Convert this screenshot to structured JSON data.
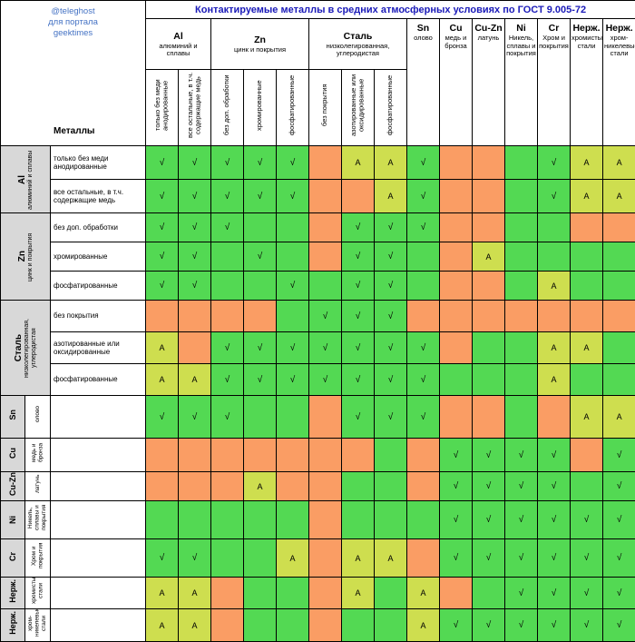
{
  "credit": {
    "line1": "@teleghost",
    "line2": "для портала",
    "line3": "geektimes"
  },
  "metals_label": "Металлы",
  "colors": {
    "allowed_green": "#53d953",
    "conditional_yellow": "#cede4f",
    "forbidden_orange": "#fa9d64",
    "group_gray": "#d8d8d8",
    "title_blue": "#1a1ab8",
    "credit_blue": "#4472c4"
  },
  "chart_data": {
    "type": "table",
    "title": "Контактируемые металлы в средних атмосферных условиях по ГОСТ 9.005-72",
    "legend_marks": {
      "v": "√",
      "a": "A"
    },
    "cell_states": {
      "v": "allowed-checked",
      "g": "allowed-unmarked",
      "a": "conditional-A",
      "o": "not-allowed"
    },
    "groups": [
      {
        "code": "Al",
        "name": "алюминий и сплавы",
        "subs": [
          "только без меди анодированные",
          "все остальные, в т.ч. содержащие медь"
        ]
      },
      {
        "code": "Zn",
        "name": "цинк и покрытия",
        "subs": [
          "без доп. обработки",
          "хромированные",
          "фосфатированные"
        ]
      },
      {
        "code": "Сталь",
        "name": "низколегированная, углеродистая",
        "subs": [
          "без покрытия",
          "азотированные или оксидированные",
          "фосфатированные"
        ]
      },
      {
        "code": "Sn",
        "name": "олово",
        "subs": []
      },
      {
        "code": "Cu",
        "name": "медь и бронза",
        "subs": []
      },
      {
        "code": "Cu-Zn",
        "name": "латунь",
        "subs": []
      },
      {
        "code": "Ni",
        "name": "Никель, сплавы и покрытия",
        "subs": []
      },
      {
        "code": "Cr",
        "name": "Хром и покрытия",
        "subs": []
      },
      {
        "code": "Нерж.",
        "name": "хромистые стали",
        "subs": []
      },
      {
        "code": "Нерж.",
        "name": "хром-никелевые стали",
        "subs": []
      }
    ],
    "matrix": [
      [
        "v",
        "v",
        "v",
        "v",
        "v",
        "o",
        "a",
        "a",
        "v",
        "o",
        "o",
        "g",
        "v",
        "a",
        "a"
      ],
      [
        "v",
        "v",
        "v",
        "v",
        "v",
        "o",
        "o",
        "a",
        "v",
        "o",
        "o",
        "g",
        "v",
        "a",
        "a"
      ],
      [
        "v",
        "v",
        "v",
        "g",
        "g",
        "o",
        "v",
        "v",
        "v",
        "o",
        "o",
        "g",
        "g",
        "o",
        "o"
      ],
      [
        "v",
        "v",
        "g",
        "v",
        "g",
        "o",
        "v",
        "v",
        "g",
        "o",
        "a",
        "g",
        "g",
        "g",
        "g"
      ],
      [
        "v",
        "v",
        "g",
        "g",
        "v",
        "g",
        "v",
        "v",
        "g",
        "o",
        "o",
        "g",
        "a",
        "g",
        "g"
      ],
      [
        "o",
        "o",
        "o",
        "o",
        "g",
        "v",
        "v",
        "v",
        "o",
        "o",
        "o",
        "o",
        "o",
        "o",
        "o"
      ],
      [
        "a",
        "o",
        "v",
        "v",
        "v",
        "v",
        "v",
        "v",
        "v",
        "o",
        "g",
        "g",
        "a",
        "a",
        "g"
      ],
      [
        "a",
        "a",
        "v",
        "v",
        "v",
        "v",
        "v",
        "v",
        "v",
        "g",
        "g",
        "g",
        "a",
        "g",
        "g"
      ],
      [
        "v",
        "v",
        "v",
        "g",
        "g",
        "o",
        "v",
        "v",
        "v",
        "o",
        "o",
        "g",
        "o",
        "a",
        "a"
      ],
      [
        "o",
        "o",
        "o",
        "o",
        "o",
        "o",
        "o",
        "g",
        "o",
        "v",
        "v",
        "v",
        "v",
        "o",
        "v"
      ],
      [
        "o",
        "o",
        "o",
        "a",
        "o",
        "o",
        "g",
        "g",
        "o",
        "v",
        "v",
        "v",
        "v",
        "g",
        "v"
      ],
      [
        "g",
        "g",
        "g",
        "g",
        "g",
        "o",
        "g",
        "g",
        "g",
        "v",
        "v",
        "v",
        "v",
        "v",
        "v"
      ],
      [
        "v",
        "v",
        "g",
        "g",
        "a",
        "o",
        "a",
        "a",
        "o",
        "v",
        "v",
        "v",
        "v",
        "v",
        "v"
      ],
      [
        "a",
        "a",
        "o",
        "g",
        "g",
        "o",
        "a",
        "g",
        "a",
        "o",
        "g",
        "v",
        "v",
        "v",
        "v"
      ],
      [
        "a",
        "a",
        "o",
        "g",
        "g",
        "o",
        "g",
        "g",
        "a",
        "v",
        "v",
        "v",
        "v",
        "v",
        "v"
      ]
    ]
  }
}
